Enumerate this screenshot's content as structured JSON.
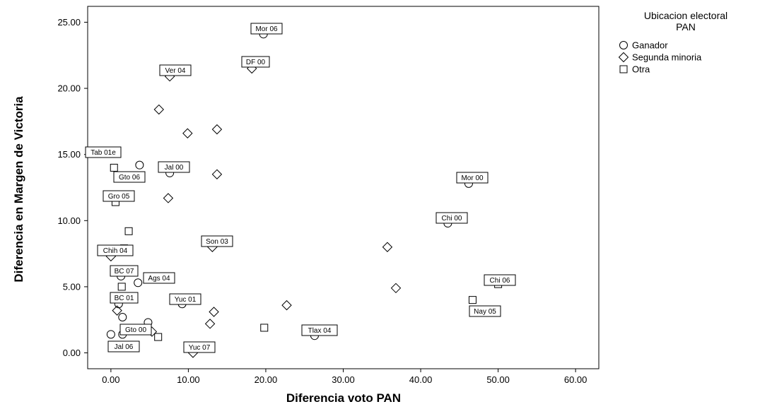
{
  "chart_data": {
    "type": "scatter",
    "xlabel": "Diferencia voto PAN",
    "ylabel": "Diferencia en Margen de Victoria",
    "xlim": [
      -3,
      63
    ],
    "ylim": [
      -1.2,
      26.2
    ],
    "x_ticks": [
      "0.00",
      "10.00",
      "20.00",
      "30.00",
      "40.00",
      "50.00",
      "60.00"
    ],
    "x_tick_values": [
      0,
      10,
      20,
      30,
      40,
      50,
      60
    ],
    "y_ticks": [
      "0.00",
      "5.00",
      "10.00",
      "15.00",
      "20.00",
      "25.00"
    ],
    "y_tick_values": [
      0,
      5,
      10,
      15,
      20,
      25
    ],
    "grid": false,
    "legend": {
      "title_line1": "Ubicacion electoral",
      "title_line2": "PAN",
      "placement": "right",
      "entries": [
        {
          "marker": "circle",
          "label": "Ganador"
        },
        {
          "marker": "diamond",
          "label": "Segunda minoria"
        },
        {
          "marker": "square",
          "label": "Otra"
        }
      ]
    },
    "points": [
      {
        "x": 19.7,
        "y": 24.1,
        "marker": "circle",
        "label": "Mor 06"
      },
      {
        "x": 3.7,
        "y": 14.2,
        "marker": "circle",
        "label": "Gto 06"
      },
      {
        "x": 7.6,
        "y": 13.6,
        "marker": "circle",
        "label": "Jal 00"
      },
      {
        "x": 46.2,
        "y": 12.8,
        "marker": "circle",
        "label": "Mor 00"
      },
      {
        "x": 43.5,
        "y": 9.8,
        "marker": "circle",
        "label": "Chi 00"
      },
      {
        "x": 1.3,
        "y": 5.8,
        "marker": "circle",
        "label": "BC 07"
      },
      {
        "x": 3.5,
        "y": 5.3,
        "marker": "circle",
        "label": "Ags 04"
      },
      {
        "x": 9.2,
        "y": 3.7,
        "marker": "circle",
        "label": "Yuc 01"
      },
      {
        "x": 1.0,
        "y": 3.7,
        "marker": "circle",
        "label": "BC 01"
      },
      {
        "x": 26.3,
        "y": 1.3,
        "marker": "circle",
        "label": "Tlax 04"
      },
      {
        "x": 1.5,
        "y": 2.7,
        "marker": "circle",
        "label": ""
      },
      {
        "x": 4.8,
        "y": 2.3,
        "marker": "circle",
        "label": "Gto 00"
      },
      {
        "x": 0.0,
        "y": 1.4,
        "marker": "circle",
        "label": ""
      },
      {
        "x": 1.5,
        "y": 1.4,
        "marker": "circle",
        "label": "Jal 06"
      },
      {
        "x": 7.6,
        "y": 20.9,
        "marker": "diamond",
        "label": "Ver 04"
      },
      {
        "x": 18.2,
        "y": 21.5,
        "marker": "diamond",
        "label": "DF 00"
      },
      {
        "x": 6.2,
        "y": 18.4,
        "marker": "diamond",
        "label": ""
      },
      {
        "x": 9.9,
        "y": 16.6,
        "marker": "diamond",
        "label": ""
      },
      {
        "x": 13.7,
        "y": 16.9,
        "marker": "diamond",
        "label": ""
      },
      {
        "x": 13.7,
        "y": 13.5,
        "marker": "diamond",
        "label": ""
      },
      {
        "x": 7.4,
        "y": 11.7,
        "marker": "diamond",
        "label": ""
      },
      {
        "x": 13.1,
        "y": 8.0,
        "marker": "diamond",
        "label": "Son 03"
      },
      {
        "x": 35.7,
        "y": 8.0,
        "marker": "diamond",
        "label": ""
      },
      {
        "x": 0.0,
        "y": 7.3,
        "marker": "diamond",
        "label": ""
      },
      {
        "x": 36.8,
        "y": 4.9,
        "marker": "diamond",
        "label": ""
      },
      {
        "x": 22.7,
        "y": 3.6,
        "marker": "diamond",
        "label": ""
      },
      {
        "x": 13.3,
        "y": 3.1,
        "marker": "diamond",
        "label": ""
      },
      {
        "x": 0.8,
        "y": 3.2,
        "marker": "diamond",
        "label": ""
      },
      {
        "x": 12.8,
        "y": 2.2,
        "marker": "diamond",
        "label": ""
      },
      {
        "x": 5.3,
        "y": 1.6,
        "marker": "diamond",
        "label": ""
      },
      {
        "x": 10.6,
        "y": 0.0,
        "marker": "diamond",
        "label": "Yuc 07"
      },
      {
        "x": 0.4,
        "y": 14.0,
        "marker": "square",
        "label": "Tab 01e"
      },
      {
        "x": 0.6,
        "y": 11.4,
        "marker": "square",
        "label": "Gro 05"
      },
      {
        "x": 2.3,
        "y": 9.2,
        "marker": "square",
        "label": ""
      },
      {
        "x": 1.7,
        "y": 7.9,
        "marker": "square",
        "label": "Chih 04"
      },
      {
        "x": 1.4,
        "y": 5.0,
        "marker": "square",
        "label": ""
      },
      {
        "x": 50.0,
        "y": 5.2,
        "marker": "square",
        "label": "Chi 06"
      },
      {
        "x": 46.7,
        "y": 4.0,
        "marker": "square",
        "label": "Nay 05"
      },
      {
        "x": 19.8,
        "y": 1.9,
        "marker": "square",
        "label": ""
      },
      {
        "x": 6.1,
        "y": 1.2,
        "marker": "square",
        "label": ""
      }
    ]
  }
}
